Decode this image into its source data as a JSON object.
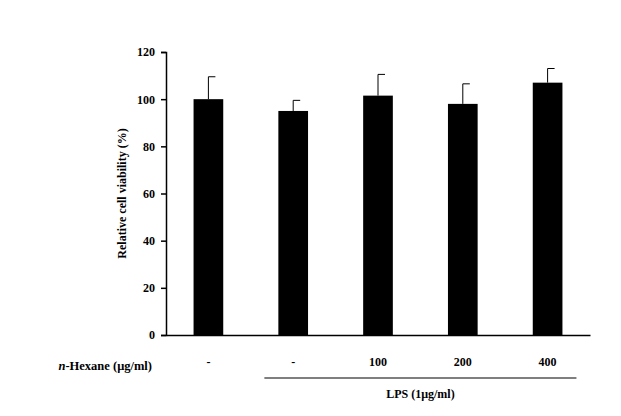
{
  "chart_data": {
    "type": "bar",
    "y_label": "Relative cell viability (%)",
    "x_label": "n-Hexane (μg/ml)",
    "categories": [
      "-",
      "-",
      "100",
      "200",
      "400"
    ],
    "values": [
      100,
      95,
      101.5,
      98,
      107
    ],
    "errors": [
      9.5,
      4.5,
      9,
      8.5,
      6
    ],
    "color": "#000000",
    "ylim": [
      0,
      120
    ],
    "yticks": [
      0,
      20,
      40,
      60,
      80,
      100,
      120
    ],
    "grid": false,
    "annotations": [
      {
        "text": "LPS (1μg/ml)"
      }
    ]
  }
}
